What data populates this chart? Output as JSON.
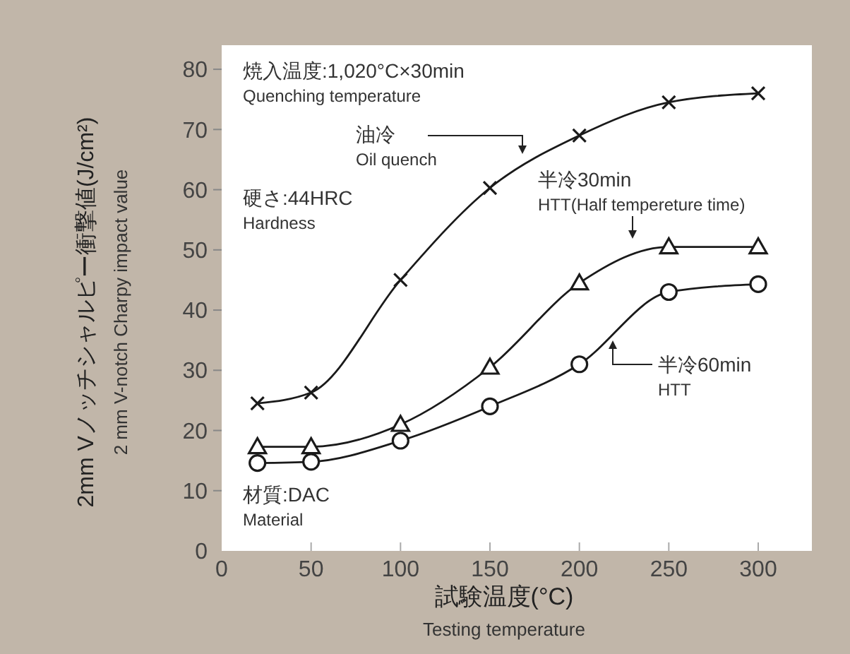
{
  "chart_data": {
    "type": "line",
    "xlabel": "試験温度(°C)\nTesting temperature",
    "ylabel": "2mm Vノッチシャルピー衝撃値(J/cm²)\n2 mm V-notch Charpy impact value",
    "xlim": [
      0,
      330
    ],
    "ylim": [
      0,
      84
    ],
    "xticks": [
      0,
      50,
      100,
      150,
      200,
      250,
      300
    ],
    "yticks": [
      0,
      10,
      20,
      30,
      40,
      50,
      60,
      70,
      80
    ],
    "grid": false,
    "x": [
      20,
      50,
      100,
      150,
      200,
      250,
      300
    ],
    "series": [
      {
        "name": "油冷\nOil quench",
        "color": "#1a1a1a",
        "marker": "cross",
        "values": [
          24.5,
          26.3,
          45,
          60.3,
          69,
          74.5,
          76
        ]
      },
      {
        "name": "半冷30min\nHTT(Half tempereture time)",
        "color": "#1a1a1a",
        "marker": "triangle",
        "values": [
          17.3,
          17.3,
          21,
          30.5,
          44.5,
          50.5,
          50.5
        ]
      },
      {
        "name": "半冷60min\nHTT",
        "color": "#1a1a1a",
        "marker": "circle",
        "values": [
          14.6,
          14.8,
          18.3,
          24,
          31,
          43,
          44.3
        ]
      }
    ],
    "annotations": [
      "焼入温度:1,020°C×30min\nQuenching temperature",
      "硬さ:44HRC\nHardness",
      "材質:DAC\nMaterial"
    ]
  }
}
